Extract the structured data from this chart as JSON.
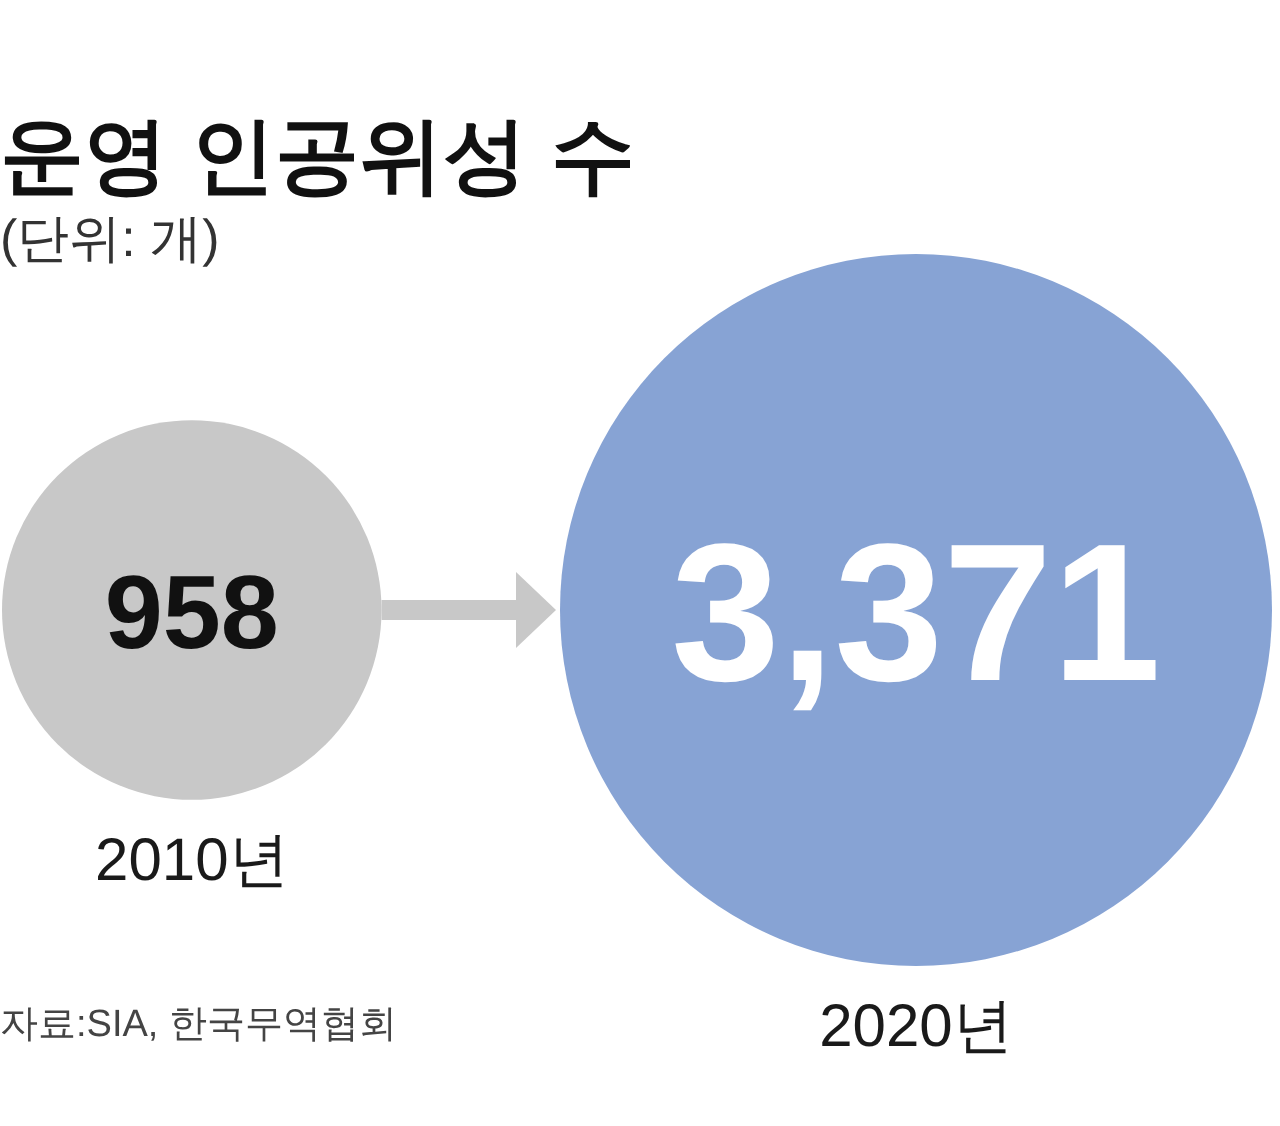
{
  "chart_data": {
    "type": "other",
    "title": "운영 인공위성 수",
    "subtitle": "(단위: 개)",
    "categories": [
      "2010년",
      "2020년"
    ],
    "values": [
      958,
      3371
    ],
    "value_labels": [
      "958",
      "3,371"
    ],
    "colors": [
      "#c8c8c8",
      "#87a3d4"
    ],
    "annotations": [
      "자료:SIA, 한국무역협회"
    ]
  }
}
